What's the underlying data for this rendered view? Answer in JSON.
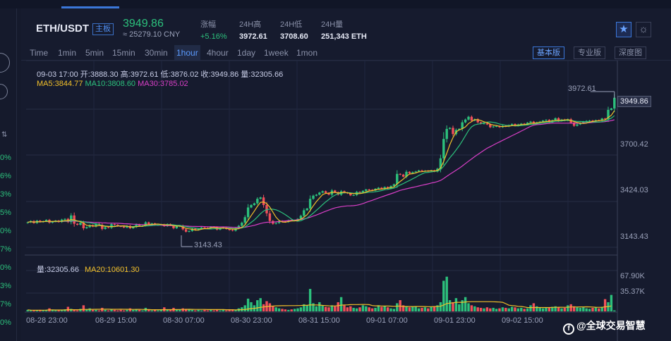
{
  "header": {
    "pair": "ETH/USDT",
    "pair_badge": "主板",
    "last_price": "3949.86",
    "cny_price": "≈ 25279.10 CNY",
    "stats": [
      {
        "label": "涨幅",
        "value": "+5.16%",
        "up": true
      },
      {
        "label": "24H高",
        "value": "3972.61",
        "up": false
      },
      {
        "label": "24H低",
        "value": "3708.60",
        "up": false
      },
      {
        "label": "24H量",
        "value": "251,343 ETH",
        "up": false
      }
    ],
    "fav_icon": "★",
    "theme_icon": "☼"
  },
  "toolbar": {
    "timeframes": [
      "Time",
      "1min",
      "5min",
      "15min",
      "30min",
      "1hour",
      "4hour",
      "1day",
      "1week",
      "1mon"
    ],
    "active_timeframe": "1hour",
    "views": [
      "基本版",
      "专业版",
      "深度图"
    ],
    "active_view": "基本版"
  },
  "ohlc_info": {
    "text": "09-03 17:00  开:3888.30  高:3972.61  低:3876.02  收:3949.86  量:32305.66",
    "ma5": "MA5:3844.77",
    "ma10": "MA10:3808.60",
    "ma30": "MA30:3785.02"
  },
  "volume_info": {
    "volume": "量:32305.66",
    "ma20": "MA20:10601.30"
  },
  "price_axis": [
    "3700.42",
    "3424.03",
    "3143.43"
  ],
  "volume_axis": [
    "67.90K",
    "35.37K"
  ],
  "current_price_tag": "3949.86",
  "high_marker": "3972.61",
  "low_marker": "3143.43",
  "time_axis": [
    "08-28 23:00",
    "08-29 15:00",
    "08-30 07:00",
    "08-30 23:00",
    "08-31 15:00",
    "09-01 07:00",
    "09-01 23:00",
    "09-02 15:00"
  ],
  "left_strip": {
    "percents": [
      "0%",
      "6%",
      "3%",
      "5%",
      "0%",
      "7%",
      "0%",
      "3%",
      "7%",
      "0%"
    ]
  },
  "watermark": {
    "logo": "f",
    "text": "@全球交易智慧"
  },
  "colors": {
    "up": "#2cc07c",
    "down": "#f0505a",
    "ma5": "#f2c02a",
    "ma10": "#2cc07c",
    "ma30": "#d93fc7",
    "accent": "#3b77d9"
  },
  "chart_data": {
    "type": "candlestick",
    "interval": "1hour",
    "price_range": [
      3090,
      4010
    ],
    "closes": [
      3230,
      3238,
      3226,
      3240,
      3232,
      3236,
      3244,
      3228,
      3234,
      3240,
      3232,
      3246,
      3250,
      3232,
      3270,
      3222,
      3216,
      3228,
      3196,
      3202,
      3214,
      3206,
      3222,
      3216,
      3192,
      3202,
      3199,
      3220,
      3216,
      3208,
      3206,
      3200,
      3210,
      3196,
      3203,
      3218,
      3208,
      3212,
      3230,
      3218,
      3224,
      3214,
      3216,
      3218,
      3208,
      3220,
      3212,
      3196,
      3206,
      3210,
      3190,
      3176,
      3180,
      3194,
      3186,
      3192,
      3200,
      3198,
      3196,
      3204,
      3202,
      3188,
      3196,
      3200,
      3192,
      3186,
      3182,
      3196,
      3210,
      3228,
      3260,
      3316,
      3330,
      3340,
      3366,
      3374,
      3330,
      3282,
      3238,
      3222,
      3226,
      3238,
      3236,
      3232,
      3242,
      3240,
      3242,
      3250,
      3268,
      3300,
      3310,
      3366,
      3384,
      3390,
      3402,
      3410,
      3400,
      3390,
      3414,
      3404,
      3390,
      3410,
      3402,
      3398,
      3386,
      3388,
      3406,
      3402,
      3412,
      3420,
      3418,
      3414,
      3424,
      3430,
      3424,
      3434,
      3426,
      3440,
      3450,
      3510,
      3506,
      3494,
      3522,
      3514,
      3520,
      3524,
      3530,
      3526,
      3528,
      3526,
      3530,
      3524,
      3540,
      3600,
      3712,
      3770,
      3776,
      3740,
      3764,
      3770,
      3808,
      3824,
      3840,
      3818,
      3826,
      3808,
      3800,
      3802,
      3796,
      3780,
      3784,
      3786,
      3780,
      3788,
      3784,
      3792,
      3798,
      3788,
      3796,
      3800,
      3796,
      3806,
      3812,
      3800,
      3808,
      3812,
      3818,
      3822,
      3808,
      3820,
      3832,
      3816,
      3824,
      3818,
      3826,
      3806,
      3788,
      3796,
      3804,
      3812,
      3816,
      3818,
      3814,
      3820,
      3818,
      3830,
      3828,
      3880,
      3888,
      3949.86
    ],
    "volume_range": [
      0,
      80000
    ],
    "volumes_k": [
      3,
      2,
      2,
      2,
      3,
      2,
      3,
      6,
      3,
      2,
      2,
      3,
      4,
      9,
      5,
      3,
      2,
      5,
      12,
      4,
      6,
      3,
      3,
      2,
      7,
      3,
      2,
      4,
      3,
      2,
      3,
      2,
      3,
      6,
      3,
      4,
      3,
      2,
      7,
      3,
      2,
      3,
      2,
      3,
      8,
      4,
      3,
      7,
      3,
      4,
      6,
      5,
      4,
      3,
      2,
      3,
      2,
      3,
      2,
      3,
      2,
      3,
      2,
      3,
      2,
      3,
      4,
      3,
      6,
      8,
      12,
      25,
      18,
      12,
      22,
      26,
      14,
      20,
      16,
      10,
      8,
      6,
      5,
      4,
      3,
      4,
      5,
      6,
      8,
      14,
      12,
      44,
      16,
      10,
      18,
      12,
      9,
      8,
      12,
      10,
      18,
      28,
      12,
      8,
      10,
      7,
      6,
      8,
      12,
      10,
      8,
      6,
      7,
      12,
      9,
      10,
      8,
      6,
      5,
      16,
      22,
      12,
      10,
      8,
      9,
      10,
      6,
      7,
      8,
      6,
      9,
      10,
      12,
      18,
      60,
      68,
      22,
      18,
      26,
      14,
      22,
      28,
      16,
      12,
      10,
      8,
      7,
      6,
      8,
      6,
      7,
      5,
      6,
      8,
      7,
      6,
      9,
      8,
      6,
      7,
      5,
      6,
      12,
      16,
      10,
      8,
      6,
      7,
      8,
      9,
      10,
      8,
      6,
      7,
      12,
      14,
      10,
      8,
      7,
      8,
      6,
      5,
      7,
      8,
      6,
      9,
      24,
      18,
      32.31
    ]
  }
}
